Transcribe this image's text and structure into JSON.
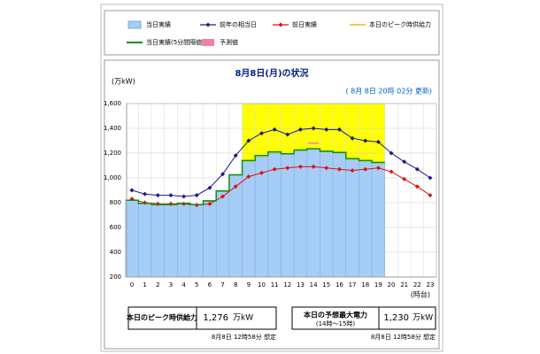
{
  "chart_data": {
    "type": "bar",
    "title": "8月8日(月)の状況",
    "y_label": "(万kW)",
    "x_label": "(時台)",
    "update_note": "( 8月 8日 20時 02分 更新)",
    "categories": [
      "0",
      "1",
      "2",
      "3",
      "4",
      "5",
      "6",
      "7",
      "8",
      "9",
      "10",
      "11",
      "12",
      "13",
      "14",
      "15",
      "16",
      "17",
      "18",
      "19",
      "20",
      "21",
      "22",
      "23"
    ],
    "highlight": {
      "start": "9",
      "end": "19",
      "color": "#ffff00"
    },
    "ylim": [
      200,
      1600
    ],
    "yticks": [
      200,
      400,
      600,
      800,
      {
        "value": 1000,
        "label": "1,000"
      },
      {
        "value": 1200,
        "label": "1,200"
      },
      {
        "value": 1400,
        "label": "1,400"
      },
      {
        "value": 1600,
        "label": "1,600"
      }
    ],
    "grid": true,
    "series": [
      {
        "name": "当日実績",
        "style": "bar",
        "color": "#a6cdf5",
        "values": [
          810,
          790,
          780,
          780,
          790,
          780,
          810,
          890,
          1020,
          1130,
          1170,
          1200,
          1190,
          1220,
          1230,
          1210,
          1200,
          1150,
          1130,
          1120,
          null,
          null,
          null,
          null
        ]
      },
      {
        "name": "前年の相当日",
        "style": "line",
        "marker": "diamond",
        "color": "#1a1a8c",
        "values": [
          900,
          870,
          860,
          860,
          850,
          860,
          920,
          1030,
          1180,
          1300,
          1360,
          1390,
          1350,
          1390,
          1400,
          1390,
          1390,
          1320,
          1300,
          1290,
          1200,
          1130,
          1070,
          1000
        ]
      },
      {
        "name": "前日実績",
        "style": "line",
        "marker": "diamond",
        "color": "#e01010",
        "values": [
          830,
          800,
          790,
          790,
          790,
          780,
          790,
          850,
          930,
          1010,
          1040,
          1070,
          1080,
          1090,
          1090,
          1080,
          1070,
          1060,
          1070,
          1080,
          1050,
          990,
          930,
          860
        ]
      },
      {
        "name": "本日のピーク時供給力",
        "style": "dash",
        "color": "#f0a000",
        "values": [
          null,
          null,
          null,
          null,
          null,
          null,
          null,
          null,
          null,
          null,
          null,
          null,
          null,
          null,
          null,
          null,
          null,
          null,
          null,
          null,
          null,
          null,
          null,
          null
        ]
      },
      {
        "name": "当日実績(5分間隔値)",
        "style": "step",
        "color": "#109010",
        "values": [
          820,
          795,
          785,
          785,
          795,
          785,
          815,
          895,
          1025,
          1140,
          1180,
          1210,
          1195,
          1225,
          1235,
          1215,
          1205,
          1155,
          1140,
          1125,
          null,
          null,
          null,
          null
        ]
      },
      {
        "name": "予測値",
        "style": "dash",
        "color": "#f080b0",
        "values": [
          null,
          null,
          null,
          null,
          null,
          null,
          null,
          null,
          null,
          null,
          null,
          null,
          null,
          null,
          1280,
          null,
          null,
          null,
          null,
          null,
          null,
          null,
          null,
          null
        ]
      }
    ]
  },
  "info_boxes": [
    {
      "label": "本日のピーク時供給力",
      "value": "1,276",
      "unit": "万kW",
      "note": "8月8日 12時58分 想定"
    },
    {
      "label": "本日の予想最大電力",
      "sublabel": "(14時～15時)",
      "value": "1,230",
      "unit": "万kW",
      "note": "8月8日 12時58分 想定"
    }
  ]
}
